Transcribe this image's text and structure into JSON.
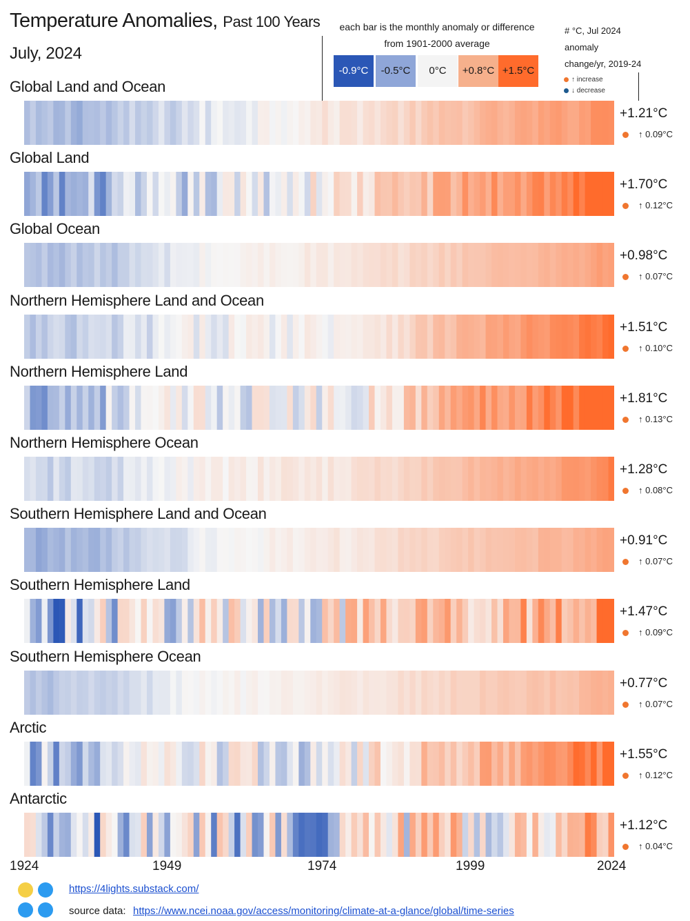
{
  "header": {
    "title": "Temperature Anomalies,",
    "title_suffix": "Past 100 Years",
    "subtitle": "July, 2024"
  },
  "legend": {
    "description_line1": "each bar is the monthly anomaly or difference",
    "description_line2": "from 1901-2000 average",
    "swatches": [
      {
        "label": "-0.9°C",
        "value": -0.9,
        "color": "#2b57b6",
        "text_color": "#ffffff"
      },
      {
        "label": "-0.5°C",
        "value": -0.5,
        "color": "#8fa6d8",
        "text_color": "#1a1a1a"
      },
      {
        "label": "0°C",
        "value": 0.0,
        "color": "#f4f4f4",
        "text_color": "#1a1a1a"
      },
      {
        "label": "+0.8°C",
        "value": 0.8,
        "color": "#f6b08c",
        "text_color": "#1a1a1a"
      },
      {
        "label": "+1.5°C",
        "value": 1.5,
        "color": "#ff6b2c",
        "text_color": "#1a1a1a"
      }
    ]
  },
  "key": {
    "line1": "# °C, Jul 2024",
    "line2": "anomaly",
    "line3": "change/yr, 2019-24",
    "increase": "↑ increase",
    "decrease": "↓ decrease",
    "increase_color": "#f0762f",
    "decrease_color": "#1d5a8f"
  },
  "chart_data": {
    "type": "heatmap",
    "x": {
      "start_year": 1924,
      "end_year": 2024,
      "ticks": [
        "1924",
        "1949",
        "1974",
        "1999",
        "2024"
      ]
    },
    "color_scale": {
      "min": -0.9,
      "max": 1.5
    },
    "series": [
      {
        "name": "Global Land and Ocean",
        "label": "+1.21°C",
        "change": "↑ 0.09°C",
        "anchors": [
          [
            0,
            -0.35
          ],
          [
            15,
            -0.3
          ],
          [
            30,
            -0.1
          ],
          [
            45,
            0.1
          ],
          [
            55,
            0.2
          ],
          [
            65,
            0.35
          ],
          [
            75,
            0.6
          ],
          [
            85,
            0.8
          ],
          [
            95,
            0.95
          ],
          [
            100,
            1.21
          ]
        ],
        "noise": 0.12
      },
      {
        "name": "Global Land",
        "label": "+1.70°C",
        "change": "↑ 0.12°C",
        "anchors": [
          [
            0,
            -0.55
          ],
          [
            15,
            -0.35
          ],
          [
            30,
            -0.15
          ],
          [
            45,
            0.05
          ],
          [
            55,
            0.2
          ],
          [
            65,
            0.5
          ],
          [
            75,
            0.85
          ],
          [
            85,
            1.05
          ],
          [
            95,
            1.35
          ],
          [
            100,
            1.7
          ]
        ],
        "noise": 0.3
      },
      {
        "name": "Global Ocean",
        "label": "+0.98°C",
        "change": "↑ 0.07°C",
        "anchors": [
          [
            0,
            -0.3
          ],
          [
            15,
            -0.25
          ],
          [
            30,
            0.0
          ],
          [
            45,
            0.1
          ],
          [
            55,
            0.15
          ],
          [
            65,
            0.3
          ],
          [
            75,
            0.5
          ],
          [
            85,
            0.65
          ],
          [
            95,
            0.8
          ],
          [
            100,
            0.98
          ]
        ],
        "noise": 0.08
      },
      {
        "name": "Northern Hemisphere Land and Ocean",
        "label": "+1.51°C",
        "change": "↑ 0.10°C",
        "anchors": [
          [
            0,
            -0.3
          ],
          [
            15,
            -0.2
          ],
          [
            30,
            0.0
          ],
          [
            45,
            0.05
          ],
          [
            55,
            0.1
          ],
          [
            65,
            0.35
          ],
          [
            75,
            0.7
          ],
          [
            85,
            0.95
          ],
          [
            95,
            1.2
          ],
          [
            100,
            1.51
          ]
        ],
        "noise": 0.15
      },
      {
        "name": "Northern Hemisphere Land",
        "label": "+1.81°C",
        "change": "↑ 0.13°C",
        "anchors": [
          [
            0,
            -0.35
          ],
          [
            15,
            -0.2
          ],
          [
            30,
            0.0
          ],
          [
            45,
            0.0
          ],
          [
            55,
            0.05
          ],
          [
            65,
            0.4
          ],
          [
            75,
            0.9
          ],
          [
            85,
            1.15
          ],
          [
            95,
            1.45
          ],
          [
            100,
            1.81
          ]
        ],
        "noise": 0.3
      },
      {
        "name": "Northern Hemisphere Ocean",
        "label": "+1.28°C",
        "change": "↑ 0.08°C",
        "anchors": [
          [
            0,
            -0.2
          ],
          [
            15,
            -0.15
          ],
          [
            30,
            0.05
          ],
          [
            45,
            0.15
          ],
          [
            55,
            0.2
          ],
          [
            65,
            0.35
          ],
          [
            75,
            0.6
          ],
          [
            85,
            0.8
          ],
          [
            95,
            1.0
          ],
          [
            100,
            1.28
          ]
        ],
        "noise": 0.1
      },
      {
        "name": "Southern Hemisphere Land and Ocean",
        "label": "+0.91°C",
        "change": "↑ 0.07°C",
        "anchors": [
          [
            0,
            -0.4
          ],
          [
            15,
            -0.3
          ],
          [
            30,
            -0.05
          ],
          [
            45,
            0.1
          ],
          [
            55,
            0.15
          ],
          [
            65,
            0.3
          ],
          [
            75,
            0.45
          ],
          [
            85,
            0.6
          ],
          [
            95,
            0.75
          ],
          [
            100,
            0.91
          ]
        ],
        "noise": 0.08
      },
      {
        "name": "Southern Hemisphere Land",
        "label": "+1.47°C",
        "change": "↑ 0.09°C",
        "anchors": [
          [
            0,
            -0.5
          ],
          [
            15,
            -0.1
          ],
          [
            30,
            0.1
          ],
          [
            45,
            0.1
          ],
          [
            55,
            0.3
          ],
          [
            65,
            0.45
          ],
          [
            75,
            0.6
          ],
          [
            85,
            0.75
          ],
          [
            95,
            0.95
          ],
          [
            100,
            1.47
          ]
        ],
        "noise": 0.6
      },
      {
        "name": "Southern Hemisphere Ocean",
        "label": "+0.77°C",
        "change": "↑ 0.07°C",
        "anchors": [
          [
            0,
            -0.3
          ],
          [
            15,
            -0.2
          ],
          [
            30,
            0.0
          ],
          [
            45,
            0.1
          ],
          [
            55,
            0.15
          ],
          [
            65,
            0.25
          ],
          [
            75,
            0.4
          ],
          [
            85,
            0.5
          ],
          [
            95,
            0.6
          ],
          [
            100,
            0.77
          ]
        ],
        "noise": 0.07
      },
      {
        "name": "Arctic",
        "label": "+1.55°C",
        "change": "↑ 0.12°C",
        "anchors": [
          [
            0,
            -0.4
          ],
          [
            15,
            -0.2
          ],
          [
            30,
            0.0
          ],
          [
            45,
            -0.1
          ],
          [
            55,
            0.0
          ],
          [
            65,
            0.3
          ],
          [
            75,
            0.7
          ],
          [
            85,
            0.95
          ],
          [
            95,
            1.2
          ],
          [
            100,
            1.55
          ]
        ],
        "noise": 0.4
      },
      {
        "name": "Antarctic",
        "label": "+1.12°C",
        "change": "↑ 0.04°C",
        "anchors": [
          [
            0,
            -0.4
          ],
          [
            15,
            -0.3
          ],
          [
            30,
            -0.1
          ],
          [
            45,
            -0.2
          ],
          [
            55,
            0.0
          ],
          [
            65,
            0.3
          ],
          [
            75,
            0.35
          ],
          [
            85,
            0.2
          ],
          [
            95,
            0.55
          ],
          [
            100,
            1.12
          ]
        ],
        "noise": 0.7
      }
    ]
  },
  "footer": {
    "site_url": "https://4lights.substack.com/",
    "source_label": "source data:",
    "source_url": "https://www.ncei.noaa.gov/access/monitoring/climate-at-a-glance/global/time-series",
    "logo_colors": [
      "#f5cf45",
      "#2c9bf0"
    ]
  }
}
